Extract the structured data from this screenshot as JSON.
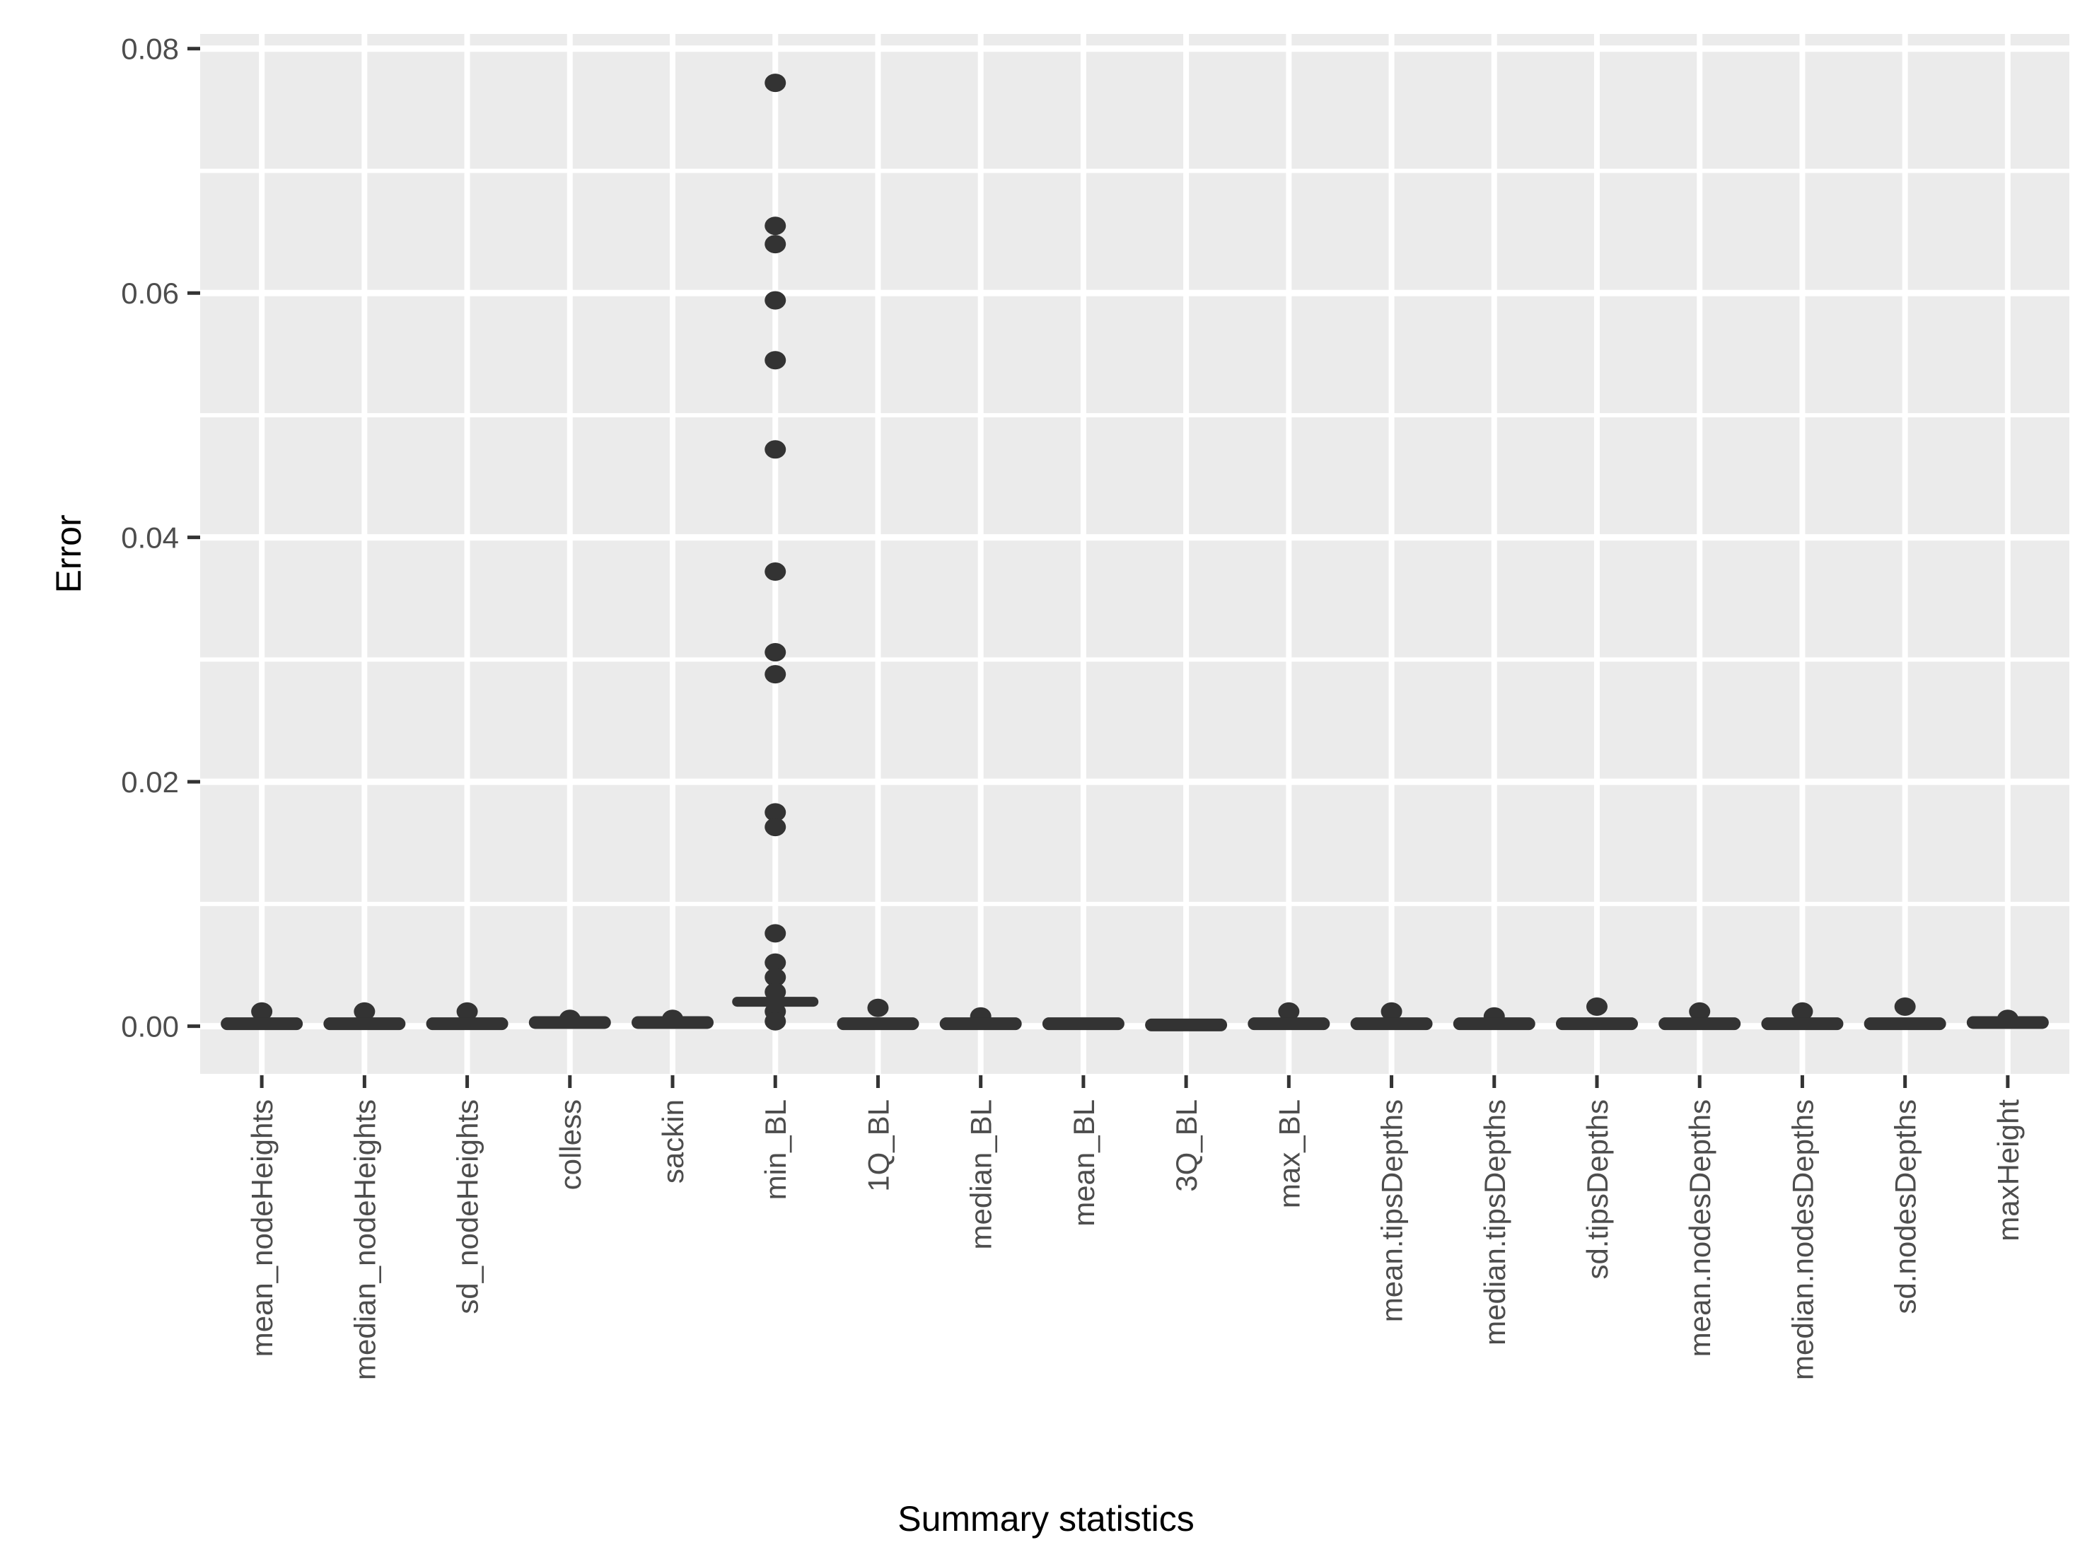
{
  "chart_data": {
    "type": "boxplot",
    "title": "",
    "xlabel": "Summary statistics",
    "ylabel": "Error",
    "legend": "none",
    "grid": true,
    "panel_background": "#EBEBEB",
    "grid_color": "#FFFFFF",
    "data_color": "#333333",
    "tick_label_color": "#4D4D4D",
    "tick_mark_color": "#333333",
    "y_ticks": [
      0.0,
      0.02,
      0.04,
      0.06,
      0.08
    ],
    "y_tick_labels": [
      "0.00",
      "0.02",
      "0.04",
      "0.06",
      "0.08"
    ],
    "y_minor_ticks": [
      0.01,
      0.03,
      0.05,
      0.07
    ],
    "ylim": [
      -0.0039,
      0.0812
    ],
    "categories": [
      "mean_nodeHeights",
      "median_nodeHeights",
      "sd_nodeHeights",
      "colless",
      "sackin",
      "min_BL",
      "1Q_BL",
      "median_BL",
      "mean_BL",
      "3Q_BL",
      "max_BL",
      "mean.tipsDepths",
      "median.tipsDepths",
      "sd.tipsDepths",
      "mean.nodesDepths",
      "median.nodesDepths",
      "sd.nodesDepths",
      "maxHeight"
    ],
    "series": [
      {
        "label": "mean_nodeHeights",
        "box_median": 0.0002,
        "outlier_points": [
          0.0012
        ]
      },
      {
        "label": "median_nodeHeights",
        "box_median": 0.0002,
        "outlier_points": [
          0.0012
        ]
      },
      {
        "label": "sd_nodeHeights",
        "box_median": 0.0002,
        "outlier_points": [
          0.0012
        ]
      },
      {
        "label": "colless",
        "box_median": 0.0003,
        "outlier_points": [
          0.0006
        ]
      },
      {
        "label": "sackin",
        "box_median": 0.0003,
        "outlier_points": [
          0.0006
        ]
      },
      {
        "label": "min_BL",
        "box_median": 0.002,
        "outlier_points": [
          0.0772,
          0.0655,
          0.064,
          0.0594,
          0.0545,
          0.0472,
          0.0372,
          0.0306,
          0.0288,
          0.0175,
          0.0163,
          0.0076,
          0.0052,
          0.004,
          0.0028,
          0.0012,
          0.0004
        ]
      },
      {
        "label": "1Q_BL",
        "box_median": 0.0002,
        "outlier_points": [
          0.0015
        ]
      },
      {
        "label": "median_BL",
        "box_median": 0.0002,
        "outlier_points": [
          0.0008
        ]
      },
      {
        "label": "mean_BL",
        "box_median": 0.0002,
        "outlier_points": []
      },
      {
        "label": "3Q_BL",
        "box_median": 0.0001,
        "outlier_points": []
      },
      {
        "label": "max_BL",
        "box_median": 0.0002,
        "outlier_points": [
          0.0012
        ]
      },
      {
        "label": "mean.tipsDepths",
        "box_median": 0.0002,
        "outlier_points": [
          0.0012
        ]
      },
      {
        "label": "median.tipsDepths",
        "box_median": 0.0002,
        "outlier_points": [
          0.0008
        ]
      },
      {
        "label": "sd.tipsDepths",
        "box_median": 0.0002,
        "outlier_points": [
          0.0016
        ]
      },
      {
        "label": "mean.nodesDepths",
        "box_median": 0.0002,
        "outlier_points": [
          0.0012
        ]
      },
      {
        "label": "median.nodesDepths",
        "box_median": 0.0002,
        "outlier_points": [
          0.0012
        ]
      },
      {
        "label": "sd.nodesDepths",
        "box_median": 0.0002,
        "outlier_points": [
          0.0016
        ]
      },
      {
        "label": "maxHeight",
        "box_median": 0.0003,
        "outlier_points": [
          0.0006
        ]
      }
    ]
  }
}
